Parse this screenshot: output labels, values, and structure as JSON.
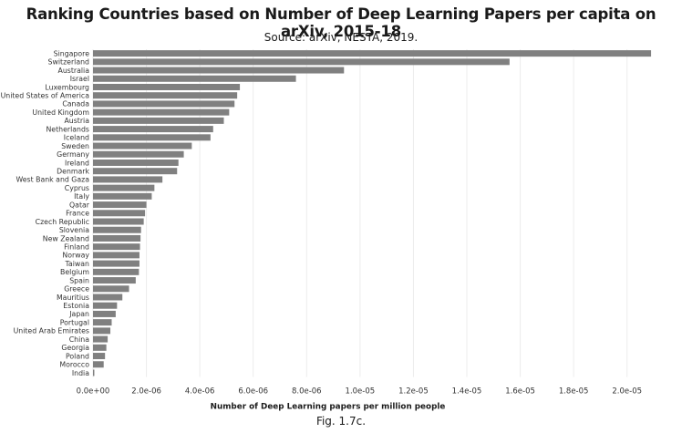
{
  "title": "Ranking Countries based on Number of Deep Learning Papers per capita on arXiv, 2015-18",
  "subtitle": "Source: arXiv, NESTA, 2019.",
  "caption": "Fig. 1.7c.",
  "chart_data": {
    "type": "bar",
    "orientation": "horizontal",
    "title": "Ranking Countries based on Number of Deep Learning Papers per capita on arXiv, 2015-18",
    "subtitle": "Source: arXiv, NESTA, 2019.",
    "xlabel": "Number of Deep Learning papers per million people",
    "ylabel": "",
    "xlim": [
      0,
      2.1e-05
    ],
    "xticks": [
      "0.0e+00",
      "2.0e-06",
      "4.0e-06",
      "6.0e-06",
      "8.0e-06",
      "1.0e-05",
      "1.2e-05",
      "1.4e-05",
      "1.6e-05",
      "1.8e-05",
      "2.0e-05"
    ],
    "xtick_values": [
      0,
      2e-06,
      4e-06,
      6e-06,
      8e-06,
      1e-05,
      1.2e-05,
      1.4e-05,
      1.6e-05,
      1.8e-05,
      2e-05
    ],
    "grid": "vertical",
    "bar_color": "#808080",
    "categories": [
      "Singapore",
      "Switzerland",
      "Australia",
      "Israel",
      "Luxembourg",
      "United States of America",
      "Canada",
      "United Kingdom",
      "Austria",
      "Netherlands",
      "Iceland",
      "Sweden",
      "Germany",
      "Ireland",
      "Denmark",
      "West Bank and Gaza",
      "Cyprus",
      "Italy",
      "Qatar",
      "France",
      "Czech Republic",
      "Slovenia",
      "New Zealand",
      "Finland",
      "Norway",
      "Taiwan",
      "Belgium",
      "Spain",
      "Greece",
      "Mauritius",
      "Estonia",
      "Japan",
      "Portugal",
      "United Arab Emirates",
      "China",
      "Georgia",
      "Poland",
      "Morocco",
      "India"
    ],
    "values": [
      2.09e-05,
      1.56e-05,
      9.4e-06,
      7.6e-06,
      5.5e-06,
      5.4e-06,
      5.3e-06,
      5.1e-06,
      4.9e-06,
      4.5e-06,
      4.4e-06,
      3.7e-06,
      3.4e-06,
      3.2e-06,
      3.15e-06,
      2.6e-06,
      2.3e-06,
      2.2e-06,
      2e-06,
      1.95e-06,
      1.9e-06,
      1.8e-06,
      1.78e-06,
      1.76e-06,
      1.74e-06,
      1.74e-06,
      1.72e-06,
      1.6e-06,
      1.35e-06,
      1.1e-06,
      9e-07,
      8.5e-07,
      7e-07,
      6.5e-07,
      5.5e-07,
      5e-07,
      4.5e-07,
      4e-07,
      5e-08
    ]
  }
}
